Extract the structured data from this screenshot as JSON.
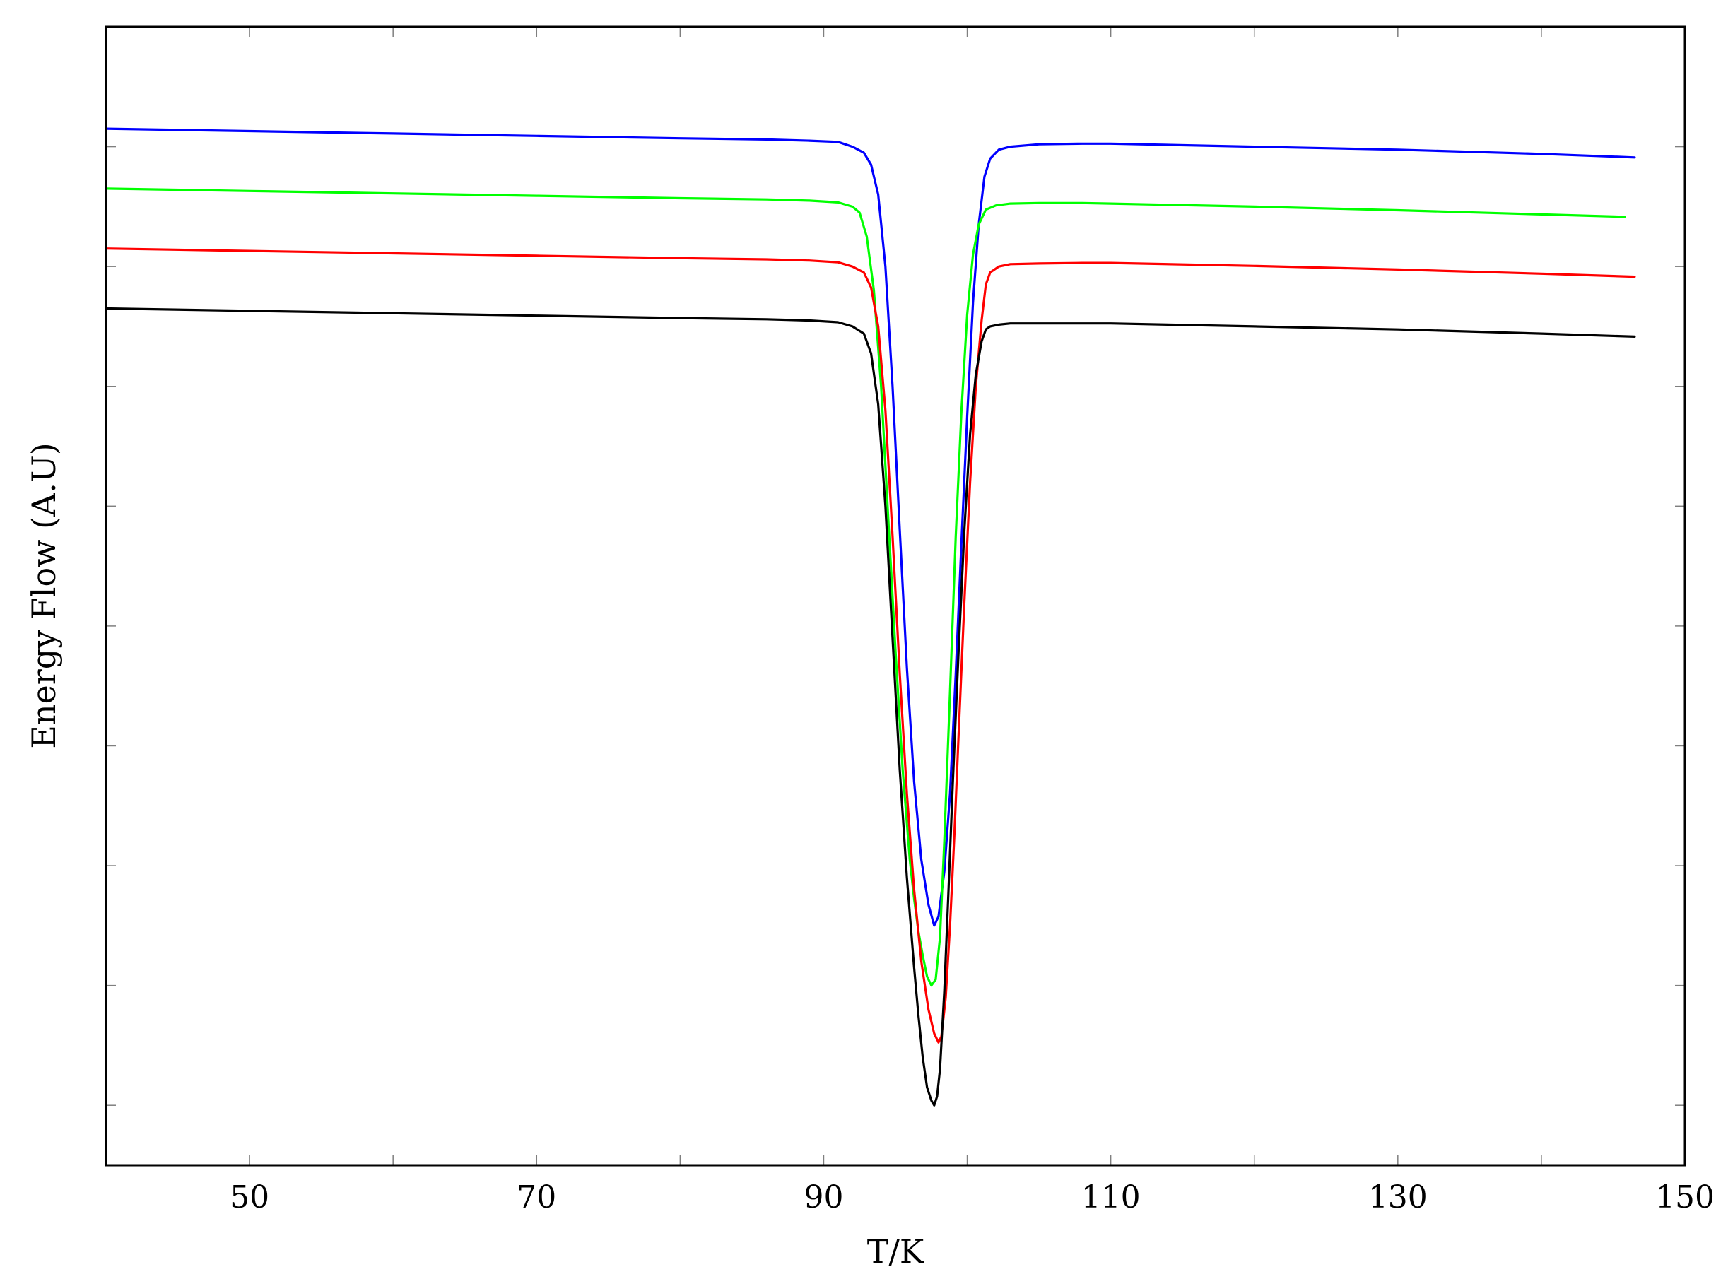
{
  "chart_data": {
    "type": "line",
    "title": "",
    "xlabel": "T/K",
    "ylabel": "Energy Flow (A.U)",
    "xlim": [
      40,
      150
    ],
    "ylim": [
      0,
      19
    ],
    "x_ticks_major": [
      50,
      70,
      90,
      110,
      130,
      150
    ],
    "x_ticks_minor": [
      60,
      80,
      100,
      120,
      140
    ],
    "y_ticks": [
      1,
      3,
      5,
      7,
      9,
      11,
      13,
      15,
      17
    ],
    "y_tick_labels_shown": false,
    "grid": false,
    "legend": "none",
    "series": [
      {
        "color": "#0000ff",
        "x": [
          40,
          50,
          60,
          70,
          80,
          86,
          89,
          91,
          92,
          92.8,
          93.3,
          93.8,
          94.3,
          94.8,
          95.3,
          95.8,
          96.3,
          96.8,
          97.3,
          97.7,
          98.0,
          98.4,
          98.8,
          99.2,
          99.6,
          100.0,
          100.4,
          100.8,
          101.2,
          101.6,
          102.2,
          103,
          105,
          108,
          110,
          120,
          130,
          140,
          146.5
        ],
        "y": [
          17.3,
          17.26,
          17.22,
          17.18,
          17.14,
          17.12,
          17.1,
          17.08,
          17.0,
          16.9,
          16.7,
          16.2,
          15.0,
          13.0,
          10.6,
          8.3,
          6.4,
          5.1,
          4.35,
          4.0,
          4.15,
          4.9,
          6.2,
          8.2,
          10.4,
          12.5,
          14.4,
          15.7,
          16.5,
          16.8,
          16.95,
          17.0,
          17.04,
          17.05,
          17.05,
          17.0,
          16.95,
          16.88,
          16.82
        ]
      },
      {
        "color": "#00ff00",
        "x": [
          40,
          50,
          60,
          70,
          80,
          86,
          89,
          91,
          92,
          92.5,
          93.0,
          93.5,
          94.0,
          94.5,
          95.0,
          95.5,
          96.0,
          96.3,
          96.6,
          96.9,
          97.2,
          97.5,
          97.8,
          98.1,
          98.4,
          98.8,
          99.2,
          99.6,
          100.0,
          100.4,
          100.8,
          101.3,
          102,
          103,
          105,
          108,
          110,
          120,
          130,
          140,
          145.8
        ],
        "y": [
          16.3,
          16.26,
          16.22,
          16.18,
          16.14,
          16.12,
          16.1,
          16.07,
          16.0,
          15.9,
          15.5,
          14.6,
          13.0,
          10.8,
          8.6,
          6.6,
          5.1,
          4.45,
          3.9,
          3.5,
          3.15,
          3.0,
          3.1,
          3.8,
          5.4,
          7.9,
          10.5,
          12.6,
          14.2,
          15.2,
          15.7,
          15.95,
          16.02,
          16.05,
          16.06,
          16.06,
          16.05,
          16.0,
          15.94,
          15.87,
          15.83
        ]
      },
      {
        "color": "#ff0000",
        "x": [
          40,
          50,
          60,
          70,
          80,
          86,
          89,
          91,
          92,
          92.8,
          93.3,
          93.8,
          94.3,
          94.8,
          95.3,
          95.8,
          96.3,
          96.8,
          97.3,
          97.7,
          98.0,
          98.2,
          98.5,
          98.8,
          99.1,
          99.4,
          99.8,
          100.2,
          100.6,
          101.0,
          101.3,
          101.6,
          102.2,
          103,
          105,
          108,
          110,
          120,
          130,
          140,
          146.5
        ],
        "y": [
          15.3,
          15.26,
          15.22,
          15.18,
          15.14,
          15.12,
          15.1,
          15.07,
          15.0,
          14.9,
          14.65,
          14.0,
          12.6,
          10.5,
          8.2,
          6.2,
          4.6,
          3.4,
          2.6,
          2.2,
          2.05,
          2.15,
          2.8,
          4.0,
          5.5,
          7.2,
          9.4,
          11.4,
          13.0,
          14.1,
          14.7,
          14.9,
          15.0,
          15.04,
          15.05,
          15.06,
          15.06,
          15.01,
          14.95,
          14.88,
          14.83
        ]
      },
      {
        "color": "#000000",
        "x": [
          40,
          50,
          60,
          70,
          80,
          86,
          89,
          91,
          92,
          92.8,
          93.3,
          93.8,
          94.3,
          94.8,
          95.3,
          95.8,
          96.3,
          96.6,
          96.9,
          97.2,
          97.5,
          97.7,
          97.9,
          98.1,
          98.4,
          98.7,
          99.0,
          99.4,
          99.8,
          100.2,
          100.6,
          101.0,
          101.3,
          101.6,
          102.2,
          103,
          105,
          108,
          110,
          120,
          130,
          140,
          146.5
        ],
        "y": [
          14.3,
          14.26,
          14.22,
          14.18,
          14.14,
          14.12,
          14.1,
          14.07,
          14.0,
          13.88,
          13.55,
          12.7,
          11.0,
          8.8,
          6.6,
          4.8,
          3.3,
          2.5,
          1.8,
          1.3,
          1.08,
          1.0,
          1.15,
          1.6,
          2.9,
          4.6,
          6.4,
          8.6,
          10.6,
          12.2,
          13.2,
          13.75,
          13.95,
          14.0,
          14.03,
          14.05,
          14.05,
          14.05,
          14.05,
          14.0,
          13.95,
          13.88,
          13.83
        ]
      }
    ]
  }
}
